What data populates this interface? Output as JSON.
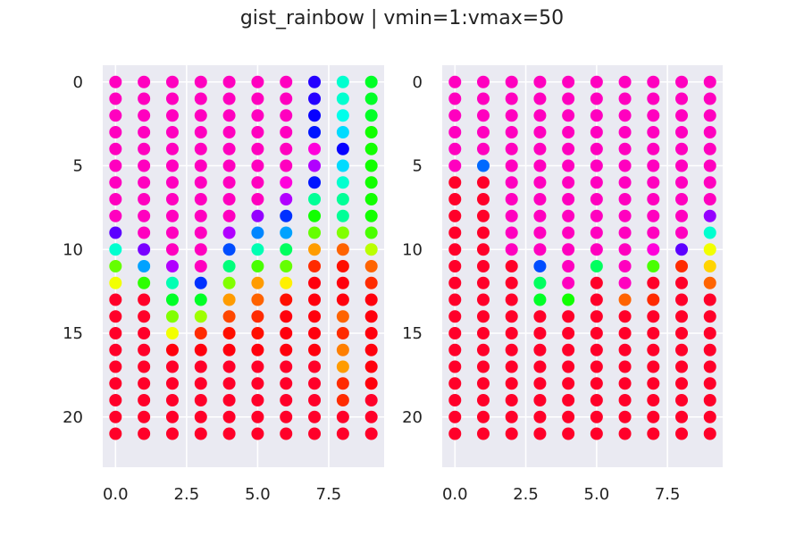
{
  "figure": {
    "title": "gist_rainbow | vmin=1:vmax=50"
  },
  "chart_data": [
    {
      "type": "scatter",
      "title": "",
      "xlabel": "",
      "ylabel": "",
      "xlim": [
        -0.45,
        9.45
      ],
      "ylim": [
        23,
        -1
      ],
      "y_inverted": true,
      "grid": true,
      "colormap": "gist_rainbow",
      "vmin": 1,
      "vmax": 50,
      "x_ticks": [
        "0.0",
        "2.5",
        "5.0",
        "7.5"
      ],
      "y_ticks": [
        "0",
        "5",
        "10",
        "15",
        "20"
      ],
      "columns": 10,
      "rows": 22,
      "values": [
        [
          50,
          50,
          50,
          50,
          50,
          50,
          50,
          40,
          28,
          22
        ],
        [
          50,
          50,
          50,
          50,
          50,
          50,
          50,
          40,
          28,
          22
        ],
        [
          50,
          50,
          50,
          50,
          50,
          50,
          50,
          39,
          29,
          22
        ],
        [
          50,
          50,
          50,
          50,
          50,
          50,
          50,
          38,
          31,
          20
        ],
        [
          50,
          50,
          50,
          50,
          50,
          50,
          50,
          49,
          39,
          20
        ],
        [
          50,
          50,
          50,
          50,
          50,
          50,
          50,
          45,
          31,
          20
        ],
        [
          50,
          50,
          50,
          50,
          50,
          50,
          49,
          38,
          28,
          20
        ],
        [
          50,
          50,
          50,
          50,
          50,
          50,
          45,
          26,
          26,
          20
        ],
        [
          50,
          50,
          50,
          50,
          50,
          44,
          37,
          20,
          26,
          20
        ],
        [
          42,
          50,
          50,
          50,
          45,
          34,
          33,
          17,
          16,
          18
        ],
        [
          28,
          43,
          50,
          50,
          36,
          27,
          24,
          8,
          6,
          14
        ],
        [
          17,
          33,
          45,
          50,
          25,
          18,
          17,
          4,
          3,
          6
        ],
        [
          12,
          19,
          27,
          37,
          16,
          8,
          11,
          2,
          2,
          4
        ],
        [
          1,
          1,
          22,
          22,
          8,
          6,
          3,
          2,
          2,
          2
        ],
        [
          1,
          1,
          16,
          15,
          5,
          4,
          2,
          2,
          6,
          2
        ],
        [
          1,
          1,
          12,
          4,
          3,
          3,
          2,
          2,
          4,
          2
        ],
        [
          1,
          1,
          2,
          2,
          2,
          2,
          2,
          2,
          7,
          2
        ],
        [
          1,
          1,
          1,
          1,
          1,
          1,
          1,
          1,
          8,
          2
        ],
        [
          1,
          1,
          1,
          1,
          1,
          1,
          1,
          1,
          4,
          2
        ],
        [
          1,
          1,
          1,
          1,
          1,
          1,
          1,
          1,
          4,
          1
        ],
        [
          1,
          1,
          1,
          1,
          1,
          1,
          1,
          1,
          1,
          1
        ],
        [
          1,
          1,
          1,
          1,
          1,
          1,
          1,
          1,
          1,
          1
        ]
      ]
    },
    {
      "type": "scatter",
      "title": "",
      "xlabel": "",
      "ylabel": "",
      "xlim": [
        -0.45,
        9.45
      ],
      "ylim": [
        23,
        -1
      ],
      "y_inverted": true,
      "grid": true,
      "colormap": "gist_rainbow",
      "vmin": 1,
      "vmax": 50,
      "x_ticks": [
        "0.0",
        "2.5",
        "5.0",
        "7.5"
      ],
      "y_ticks": [
        "0",
        "5",
        "10",
        "15",
        "20"
      ],
      "columns": 10,
      "rows": 22,
      "values": [
        [
          50,
          50,
          50,
          50,
          50,
          50,
          50,
          50,
          50,
          50
        ],
        [
          50,
          50,
          50,
          50,
          50,
          50,
          50,
          50,
          50,
          50
        ],
        [
          50,
          50,
          50,
          50,
          50,
          50,
          50,
          50,
          50,
          50
        ],
        [
          50,
          50,
          50,
          50,
          50,
          50,
          50,
          50,
          50,
          50
        ],
        [
          50,
          50,
          50,
          50,
          50,
          50,
          50,
          50,
          50,
          50
        ],
        [
          50,
          35,
          50,
          50,
          50,
          50,
          50,
          50,
          50,
          50
        ],
        [
          1,
          1,
          50,
          50,
          50,
          50,
          50,
          50,
          50,
          50
        ],
        [
          1,
          1,
          50,
          50,
          50,
          50,
          50,
          50,
          50,
          50
        ],
        [
          1,
          1,
          50,
          50,
          50,
          50,
          50,
          50,
          50,
          44
        ],
        [
          1,
          1,
          50,
          50,
          50,
          50,
          50,
          50,
          50,
          28
        ],
        [
          1,
          1,
          50,
          50,
          50,
          50,
          50,
          49,
          42,
          12
        ],
        [
          1,
          1,
          1,
          36,
          50,
          24,
          50,
          18,
          4,
          10
        ],
        [
          1,
          1,
          1,
          24,
          50,
          1,
          50,
          1,
          1,
          6
        ],
        [
          1,
          1,
          1,
          22,
          20,
          1,
          6,
          4,
          1,
          1
        ],
        [
          1,
          1,
          1,
          1,
          1,
          1,
          1,
          1,
          1,
          1
        ],
        [
          1,
          1,
          1,
          1,
          1,
          1,
          1,
          1,
          1,
          1
        ],
        [
          1,
          1,
          1,
          1,
          1,
          1,
          1,
          1,
          1,
          1
        ],
        [
          1,
          1,
          1,
          1,
          1,
          1,
          1,
          1,
          1,
          1
        ],
        [
          1,
          1,
          1,
          1,
          1,
          1,
          1,
          1,
          1,
          1
        ],
        [
          1,
          1,
          1,
          1,
          1,
          1,
          1,
          1,
          1,
          1
        ],
        [
          1,
          1,
          1,
          1,
          1,
          1,
          1,
          1,
          1,
          1
        ],
        [
          1,
          1,
          1,
          1,
          1,
          1,
          1,
          1,
          1,
          1
        ]
      ]
    }
  ]
}
